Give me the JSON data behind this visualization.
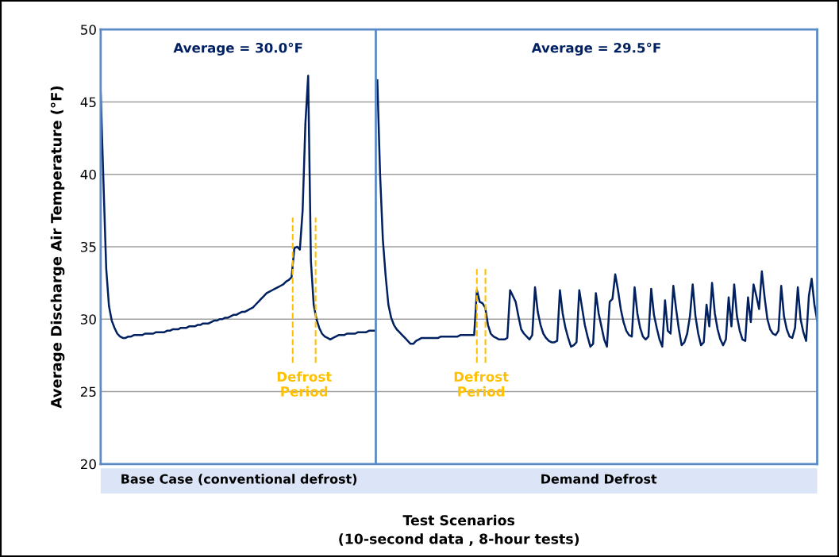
{
  "chart_data": {
    "type": "line",
    "xlabel": "Test Scenarios\n(10-second data , 8-hour tests)",
    "ylabel": "Average Discharge Air Temperature (°F)",
    "annotations": [
      "Average = 30.0°F",
      "Defrost Period",
      "Average = 29.5°F",
      "Defrost Period"
    ],
    "categories": [
      null,
      null,
      null,
      null,
      null,
      null,
      null,
      null,
      null,
      null,
      null,
      null,
      null,
      null,
      null,
      null,
      null,
      null,
      null,
      null,
      null,
      null,
      null,
      null,
      null,
      null,
      null,
      null,
      null,
      null,
      null,
      null,
      null,
      null,
      null,
      null,
      null,
      null,
      null,
      null,
      null,
      null,
      null,
      null,
      null,
      null,
      null,
      null,
      null,
      null,
      "Base Case (conventional defrost)",
      null,
      null,
      null,
      null,
      null,
      null,
      null,
      null,
      null,
      null,
      null,
      null,
      null,
      null,
      null,
      null,
      null,
      null,
      null,
      null,
      null,
      null,
      null,
      null,
      null,
      null,
      null,
      null,
      null,
      null,
      null,
      null,
      null,
      null,
      null,
      null,
      null,
      null,
      null,
      null,
      null,
      null,
      null,
      null,
      null,
      null,
      null,
      null,
      null,
      null,
      null,
      null,
      null,
      null,
      null,
      null,
      null,
      null,
      null,
      null,
      null,
      null,
      null,
      null,
      null,
      null,
      null,
      null,
      null,
      null,
      null,
      null,
      null,
      null,
      null,
      null,
      null,
      null,
      null,
      null,
      null,
      null,
      null,
      null,
      null,
      null,
      null,
      null,
      null,
      null,
      null,
      null,
      null,
      null,
      null,
      null,
      null,
      null,
      null,
      null,
      null,
      null,
      null,
      null,
      null,
      null,
      null,
      null,
      null,
      null,
      null,
      null,
      null,
      null,
      null,
      null,
      null,
      null,
      null,
      null,
      null,
      null,
      null,
      null,
      null,
      null,
      null,
      null,
      null,
      "Demand Defrost",
      null,
      null,
      null,
      null,
      null,
      null,
      null,
      null,
      null,
      null,
      null,
      null,
      null,
      null,
      null,
      null,
      null,
      null,
      null,
      null,
      null,
      null,
      null,
      null,
      null,
      null,
      null,
      null,
      null,
      null,
      null,
      null,
      null,
      null,
      null,
      null,
      null,
      null,
      null,
      null,
      null,
      null,
      null,
      null,
      null,
      null,
      null,
      null,
      null,
      null,
      null,
      null,
      null,
      null,
      null,
      null,
      null,
      null,
      null,
      null,
      null,
      null,
      null,
      null,
      null,
      null,
      null,
      null,
      null,
      null,
      null,
      null,
      null,
      null,
      null,
      null,
      null,
      null,
      null
    ],
    "series": [
      {
        "color": "#002060",
        "values": [
          45.7,
          39.5,
          33.5,
          30.9,
          29.9,
          29.4,
          29.0,
          28.8,
          28.7,
          28.7,
          28.8,
          28.8,
          28.9,
          28.9,
          28.9,
          28.9,
          29.0,
          29.0,
          29.0,
          29.0,
          29.1,
          29.1,
          29.1,
          29.1,
          29.2,
          29.2,
          29.3,
          29.3,
          29.3,
          29.4,
          29.4,
          29.4,
          29.5,
          29.5,
          29.5,
          29.6,
          29.6,
          29.7,
          29.7,
          29.7,
          29.8,
          29.9,
          29.9,
          30.0,
          30.0,
          30.1,
          30.1,
          30.2,
          30.3,
          30.3,
          30.4,
          30.5,
          30.5,
          30.6,
          30.7,
          30.8,
          31.0,
          31.2,
          31.4,
          31.6,
          31.8,
          31.9,
          32.0,
          32.1,
          32.2,
          32.3,
          32.4,
          32.6,
          32.7,
          32.9,
          34.9,
          35.0,
          34.8,
          37.5,
          43.5,
          46.8,
          34.0,
          31.0,
          30.0,
          29.4,
          29.0,
          28.8,
          28.7,
          28.6,
          28.7,
          28.8,
          28.9,
          28.9,
          28.9,
          29.0,
          29.0,
          29.0,
          29.0,
          29.1,
          29.1,
          29.1,
          29.1,
          29.2,
          29.2,
          29.2,
          null,
          null,
          null,
          null,
          null,
          null,
          null,
          null,
          null,
          null,
          null,
          null,
          null,
          null,
          null,
          null,
          null,
          null,
          null,
          null,
          null,
          null,
          null,
          null,
          null,
          null,
          null,
          null,
          null,
          null,
          null,
          null,
          null,
          null,
          null,
          null,
          null,
          null,
          null,
          null,
          null,
          null,
          null,
          null,
          null,
          null,
          null,
          null,
          null,
          null,
          null,
          null,
          null,
          null,
          null,
          null,
          null,
          null,
          null,
          null,
          null,
          null,
          null,
          null,
          null,
          null,
          null,
          null,
          null,
          null,
          null,
          null,
          null,
          null,
          null,
          null,
          null,
          null,
          null,
          null,
          null,
          null,
          null,
          null,
          null,
          null,
          null,
          null,
          null,
          null,
          null,
          null,
          null,
          null,
          null,
          null,
          null,
          null,
          null,
          null,
          null,
          null,
          null,
          null,
          null,
          null,
          null,
          null,
          null,
          null,
          null,
          null,
          null,
          null,
          null,
          null,
          null,
          null,
          null,
          null,
          null,
          null,
          null,
          null,
          null,
          null,
          null,
          null,
          null,
          null,
          null,
          null,
          null,
          null,
          null,
          null,
          null,
          null,
          null,
          null,
          null,
          null,
          null,
          null,
          null,
          null,
          null,
          null,
          null,
          null,
          null,
          null,
          null,
          null,
          null,
          null,
          null,
          null,
          null,
          null
        ]
      },
      {
        "color": "#002060",
        "values": [
          null,
          null,
          null,
          null,
          null,
          null,
          null,
          null,
          null,
          null,
          null,
          null,
          null,
          null,
          null,
          null,
          null,
          null,
          null,
          null,
          null,
          null,
          null,
          null,
          null,
          null,
          null,
          null,
          null,
          null,
          null,
          null,
          null,
          null,
          null,
          null,
          null,
          null,
          null,
          null,
          null,
          null,
          null,
          null,
          null,
          null,
          null,
          null,
          null,
          null,
          null,
          null,
          null,
          null,
          null,
          null,
          null,
          null,
          null,
          null,
          null,
          null,
          null,
          null,
          null,
          null,
          null,
          null,
          null,
          null,
          null,
          null,
          null,
          null,
          null,
          null,
          null,
          null,
          null,
          null,
          null,
          null,
          null,
          null,
          null,
          null,
          null,
          null,
          null,
          null,
          null,
          null,
          null,
          null,
          null,
          null,
          null,
          null,
          null,
          null,
          46.5,
          40.0,
          35.5,
          33.0,
          31.0,
          30.1,
          29.6,
          29.3,
          29.1,
          28.9,
          28.7,
          28.5,
          28.3,
          28.3,
          28.5,
          28.6,
          28.7,
          28.7,
          28.7,
          28.7,
          28.7,
          28.7,
          28.7,
          28.8,
          28.8,
          28.8,
          28.8,
          28.8,
          28.8,
          28.8,
          28.9,
          28.9,
          28.9,
          28.9,
          28.9,
          28.9,
          32.0,
          31.2,
          31.1,
          30.8,
          29.6,
          29.0,
          28.8,
          28.7,
          28.6,
          28.6,
          28.6,
          28.7,
          32.0,
          31.6,
          31.2,
          30.2,
          29.3,
          29.0,
          28.8,
          28.6,
          28.9,
          32.2,
          30.5,
          29.6,
          29.0,
          28.7,
          28.5,
          28.4,
          28.4,
          28.5,
          32.0,
          30.4,
          29.4,
          28.7,
          28.1,
          28.2,
          28.4,
          32.0,
          30.8,
          29.6,
          28.8,
          28.1,
          28.3,
          31.8,
          30.4,
          29.5,
          28.6,
          28.1,
          31.2,
          31.4,
          33.1,
          32.0,
          30.7,
          29.8,
          29.2,
          28.9,
          28.8,
          32.2,
          30.4,
          29.4,
          28.8,
          28.6,
          28.8,
          32.1,
          30.3,
          29.4,
          28.6,
          28.1,
          31.3,
          29.2,
          29.0,
          32.3,
          30.7,
          29.3,
          28.2,
          28.4,
          29.0,
          30.2,
          32.4,
          30.2,
          29.0,
          28.2,
          28.4,
          31.0,
          29.5,
          32.5,
          30.4,
          29.3,
          28.6,
          28.2,
          28.6,
          31.5,
          29.5,
          32.4,
          30.2,
          29.2,
          28.6,
          28.5,
          31.5,
          29.8,
          32.4,
          31.6,
          30.7,
          33.3,
          31.5,
          30.0,
          29.3,
          29.0,
          28.9,
          29.2,
          32.3,
          30.2,
          29.3,
          28.8,
          28.7,
          29.4,
          32.2,
          30.0,
          29.1,
          28.5,
          31.6,
          32.8,
          31.0,
          29.9
        ]
      }
    ],
    "ylim": [
      20,
      50
    ],
    "yticks": [
      20,
      25,
      30,
      35,
      40,
      45,
      50
    ],
    "grid": "y"
  }
}
